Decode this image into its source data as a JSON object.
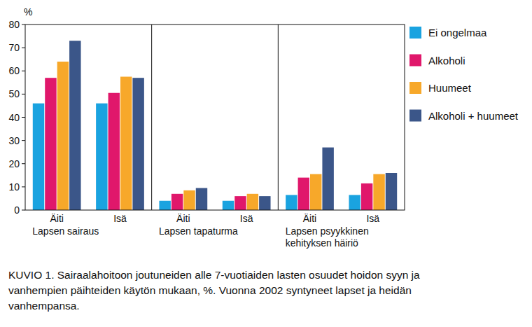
{
  "chart_data": {
    "type": "bar",
    "title": "KUVIO 1. Sairaalahoitoon joutuneiden alle 7-vuotiaiden lasten osuudet hoidon syyn ja vanhempien päihteiden käytön mukaan, %. Vuonna 2002 syntyneet lapset ja heidän vanhempansa.",
    "ylabel": "%",
    "categories": [
      "Äiti",
      "Isä",
      "Äiti",
      "Isä",
      "Äiti",
      "Isä"
    ],
    "groups": [
      "Lapsen sairaus",
      "Lapsen tapaturma",
      "Lapsen psyykkinen\nkehityksen häiriö"
    ],
    "series": [
      {
        "name": "Ei ongelmaa",
        "color": "#1aa3e0",
        "values": [
          46,
          46,
          4,
          4,
          6.5,
          6.5
        ]
      },
      {
        "name": "Alkoholi",
        "color": "#e0176b",
        "values": [
          57,
          50.5,
          7,
          6,
          14,
          11.5
        ]
      },
      {
        "name": "Huumeet",
        "color": "#f7a82a",
        "values": [
          64,
          57.5,
          8.5,
          7,
          15.5,
          15.5
        ]
      },
      {
        "name": "Alkoholi + huumeet",
        "color": "#3b5689",
        "values": [
          73,
          57,
          9.5,
          6,
          27,
          16
        ]
      }
    ],
    "ylim": [
      0,
      80
    ],
    "yticks": [
      0,
      10,
      20,
      30,
      40,
      50,
      60,
      70,
      80
    ],
    "grid": false,
    "legend": "right"
  }
}
